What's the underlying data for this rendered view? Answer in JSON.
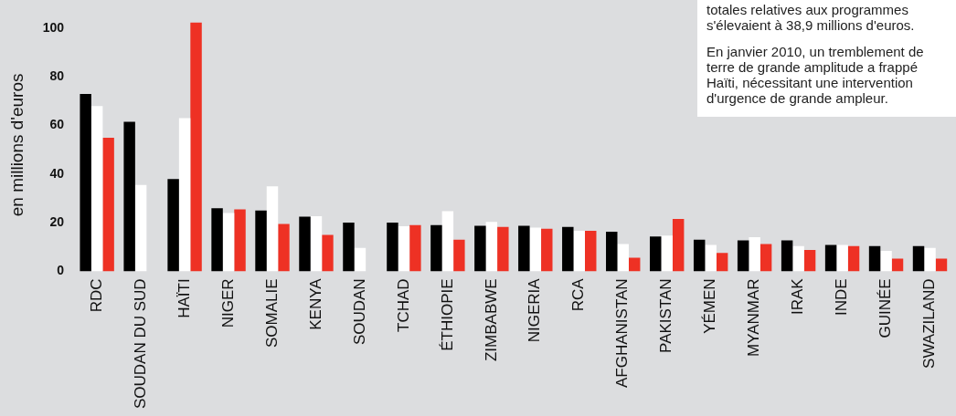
{
  "chart_data": {
    "type": "bar",
    "ylabel": "en millions d'euros",
    "categories": [
      "RDC",
      "SOUDAN DU SUD",
      "HAÏTI",
      "NIGER",
      "SOMALIE",
      "KENYA",
      "SOUDAN",
      "TCHAD",
      "ÉTHIOPIE",
      "ZIMBABWE",
      "NIGERIA",
      "RCA",
      "AFGHANISTAN",
      "PAKISTAN",
      "YÉMEN",
      "MYANMAR",
      "IRAK",
      "INDE",
      "GUINÉE",
      "SWAZILAND"
    ],
    "series": [
      {
        "color": "#000000",
        "values": [
          73,
          61.5,
          38,
          26,
          25,
          22.5,
          20,
          20,
          19,
          18.7,
          18.7,
          18.3,
          16.3,
          14.3,
          13,
          12.7,
          12.7,
          10.8,
          10.4,
          10.4
        ]
      },
      {
        "color": "#ffffff",
        "values": [
          68,
          35.5,
          63,
          24,
          35,
          22.7,
          9.6,
          18.5,
          24.7,
          20.3,
          18,
          16.7,
          11.2,
          14.7,
          10.8,
          14,
          10.4,
          10.8,
          8.4,
          9.6
        ]
      },
      {
        "color": "#ee3124",
        "values": [
          55,
          null,
          102.4,
          25.5,
          19.5,
          15,
          null,
          19,
          13,
          18.3,
          17.5,
          16.7,
          5.6,
          21.5,
          7.6,
          11.2,
          8.8,
          10.4,
          5.2,
          5.2
        ]
      }
    ],
    "ylim": [
      0,
      104
    ],
    "yticks": [
      0,
      20,
      40,
      60,
      80,
      100
    ],
    "grid": false,
    "legend": false,
    "annotations": [
      "totales relatives aux programmes s'élevaient à 38,9 millions d'euros.",
      "En janvier 2010, un tremblement de terre de grande amplitude a frappé Haïti, nécessitant une intervention d'urgence de grande ampleur."
    ]
  }
}
